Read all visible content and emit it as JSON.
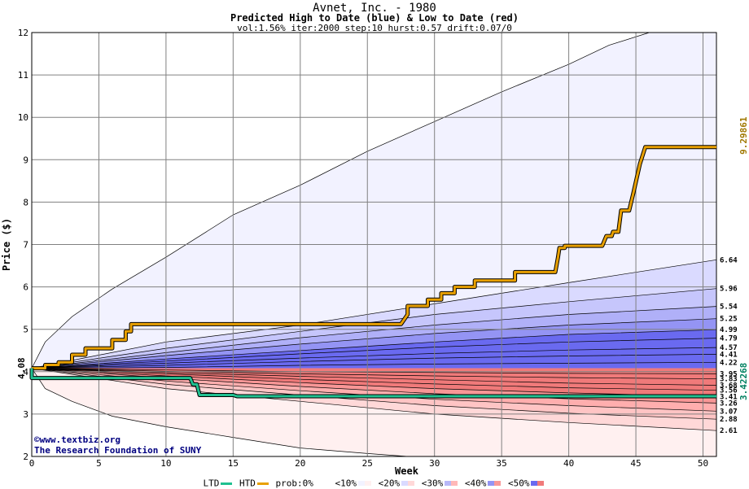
{
  "header": {
    "title": "Avnet, Inc. - 1980",
    "subtitle": "Predicted High to Date (blue) &  Low to Date (red)",
    "params": "vol:1.56% iter:2000 step:10 hurst:0.57 drift:0.07/0"
  },
  "credit": {
    "line1": "©www.textbiz.org",
    "line2": "The Research Foundation of SUNY"
  },
  "legend": {
    "ltd": "LTD",
    "htd": "HTD",
    "prob": "prob:0%",
    "b10": "<10%",
    "b20": "<20%",
    "b30": "<30%",
    "b40": "<40%",
    "b50": "<50%"
  },
  "colors": {
    "ltd": "#20c090",
    "htd": "#e8a000",
    "blue_band": "#6a6af0",
    "red_band": "#f07a7a",
    "grid": "#808080",
    "level_high": "#a07800",
    "level_low": "#008060"
  },
  "chart_data": {
    "type": "line",
    "title": "Avnet, Inc. - 1980",
    "xlabel": "Week",
    "ylabel": "Price ($)",
    "xlim": [
      0,
      51
    ],
    "ylim": [
      2,
      12
    ],
    "xticks": [
      0,
      5,
      10,
      15,
      20,
      25,
      30,
      35,
      40,
      45,
      50
    ],
    "yticks": [
      2,
      3,
      4,
      5,
      6,
      7,
      8,
      9,
      10,
      11,
      12
    ],
    "grid": true,
    "start_price": 4.08,
    "start_label": "4.08",
    "htd_final": 9.29861,
    "htd_final_label": "9.29861",
    "ltd_final": 3.42268,
    "ltd_final_label": "3.42268",
    "right_labels": [
      "6.64",
      "5.96",
      "5.54",
      "5.25",
      "4.99",
      "4.79",
      "4.57",
      "4.41",
      "4.22",
      "3.95",
      "3.83",
      "3.68",
      "3.56",
      "3.41",
      "3.26",
      "3.07",
      "2.88",
      "2.61"
    ],
    "envelope_upper": [
      [
        0,
        4.08
      ],
      [
        1,
        4.7
      ],
      [
        3,
        5.3
      ],
      [
        6,
        5.95
      ],
      [
        10,
        6.7
      ],
      [
        13,
        7.3
      ],
      [
        15,
        7.7
      ],
      [
        20,
        8.4
      ],
      [
        25,
        9.2
      ],
      [
        30,
        9.9
      ],
      [
        35,
        10.6
      ],
      [
        40,
        11.25
      ],
      [
        43,
        11.7
      ],
      [
        46,
        12.0
      ],
      [
        51,
        12.0
      ]
    ],
    "envelope_lower": [
      [
        0,
        4.08
      ],
      [
        1,
        3.6
      ],
      [
        3,
        3.3
      ],
      [
        6,
        2.95
      ],
      [
        10,
        2.7
      ],
      [
        15,
        2.45
      ],
      [
        20,
        2.2
      ],
      [
        25,
        2.07
      ],
      [
        28,
        2.0
      ],
      [
        51,
        2.0
      ]
    ],
    "blue_bands": [
      {
        "band": "<10%",
        "points": [
          [
            0,
            4.08
          ],
          [
            10,
            4.7
          ],
          [
            20,
            5.1
          ],
          [
            30,
            5.6
          ],
          [
            40,
            6.1
          ],
          [
            51,
            6.64
          ]
        ]
      },
      {
        "band": "<20%",
        "points": [
          [
            0,
            4.08
          ],
          [
            10,
            4.55
          ],
          [
            20,
            4.95
          ],
          [
            30,
            5.35
          ],
          [
            40,
            5.65
          ],
          [
            51,
            5.96
          ]
        ]
      },
      {
        "band": "<30%",
        "points": [
          [
            0,
            4.08
          ],
          [
            10,
            4.45
          ],
          [
            20,
            4.8
          ],
          [
            30,
            5.1
          ],
          [
            40,
            5.35
          ],
          [
            51,
            5.54
          ]
        ]
      },
      {
        "band": "<40%",
        "points": [
          [
            0,
            4.08
          ],
          [
            10,
            4.38
          ],
          [
            20,
            4.65
          ],
          [
            30,
            4.9
          ],
          [
            40,
            5.1
          ],
          [
            51,
            5.25
          ]
        ]
      },
      {
        "band": "<50%",
        "points": [
          [
            0,
            4.08
          ],
          [
            10,
            4.3
          ],
          [
            20,
            4.5
          ],
          [
            30,
            4.7
          ],
          [
            40,
            4.88
          ],
          [
            51,
            4.99
          ]
        ]
      }
    ],
    "blue_inner_lines": [
      [
        [
          0,
          4.08
        ],
        [
          10,
          4.25
        ],
        [
          20,
          4.42
        ],
        [
          30,
          4.58
        ],
        [
          40,
          4.7
        ],
        [
          51,
          4.79
        ]
      ],
      [
        [
          0,
          4.08
        ],
        [
          10,
          4.2
        ],
        [
          20,
          4.32
        ],
        [
          30,
          4.43
        ],
        [
          40,
          4.51
        ],
        [
          51,
          4.57
        ]
      ],
      [
        [
          0,
          4.08
        ],
        [
          10,
          4.15
        ],
        [
          20,
          4.24
        ],
        [
          30,
          4.32
        ],
        [
          40,
          4.37
        ],
        [
          51,
          4.41
        ]
      ],
      [
        [
          0,
          4.08
        ],
        [
          10,
          4.1
        ],
        [
          20,
          4.15
        ],
        [
          30,
          4.18
        ],
        [
          40,
          4.2
        ],
        [
          51,
          4.22
        ]
      ]
    ],
    "red_bands": [
      {
        "band": "<10%",
        "points": [
          [
            0,
            4.08
          ],
          [
            10,
            3.6
          ],
          [
            20,
            3.3
          ],
          [
            30,
            3.0
          ],
          [
            40,
            2.8
          ],
          [
            51,
            2.61
          ]
        ]
      },
      {
        "band": "<20%",
        "points": [
          [
            0,
            4.08
          ],
          [
            10,
            3.7
          ],
          [
            20,
            3.45
          ],
          [
            30,
            3.2
          ],
          [
            40,
            3.02
          ],
          [
            51,
            2.88
          ]
        ]
      },
      {
        "band": "<30%",
        "points": [
          [
            0,
            4.08
          ],
          [
            10,
            3.78
          ],
          [
            20,
            3.55
          ],
          [
            30,
            3.35
          ],
          [
            40,
            3.2
          ],
          [
            51,
            3.07
          ]
        ]
      },
      {
        "band": "<40%",
        "points": [
          [
            0,
            4.08
          ],
          [
            10,
            3.85
          ],
          [
            20,
            3.65
          ],
          [
            30,
            3.48
          ],
          [
            40,
            3.36
          ],
          [
            51,
            3.26
          ]
        ]
      },
      {
        "band": "<50%",
        "points": [
          [
            0,
            4.08
          ],
          [
            10,
            3.9
          ],
          [
            20,
            3.74
          ],
          [
            30,
            3.6
          ],
          [
            40,
            3.5
          ],
          [
            51,
            3.41
          ]
        ]
      }
    ],
    "red_inner_lines": [
      [
        [
          0,
          4.08
        ],
        [
          10,
          3.95
        ],
        [
          20,
          3.82
        ],
        [
          30,
          3.71
        ],
        [
          40,
          3.62
        ],
        [
          51,
          3.56
        ]
      ],
      [
        [
          0,
          4.08
        ],
        [
          10,
          3.98
        ],
        [
          20,
          3.89
        ],
        [
          30,
          3.81
        ],
        [
          40,
          3.73
        ],
        [
          51,
          3.68
        ]
      ],
      [
        [
          0,
          4.08
        ],
        [
          10,
          4.01
        ],
        [
          20,
          3.95
        ],
        [
          30,
          3.9
        ],
        [
          40,
          3.86
        ],
        [
          51,
          3.83
        ]
      ],
      [
        [
          0,
          4.08
        ],
        [
          10,
          4.04
        ],
        [
          20,
          4.0
        ],
        [
          30,
          3.98
        ],
        [
          40,
          3.96
        ],
        [
          51,
          3.95
        ]
      ]
    ],
    "series": [
      {
        "name": "HTD",
        "points": [
          [
            0,
            4.08
          ],
          [
            1,
            4.08
          ],
          [
            1,
            4.16
          ],
          [
            2,
            4.16
          ],
          [
            2,
            4.22
          ],
          [
            3,
            4.22
          ],
          [
            3,
            4.4
          ],
          [
            4,
            4.4
          ],
          [
            4,
            4.55
          ],
          [
            6,
            4.55
          ],
          [
            6,
            4.75
          ],
          [
            7,
            4.75
          ],
          [
            7,
            4.95
          ],
          [
            7.4,
            4.95
          ],
          [
            7.4,
            5.12
          ],
          [
            27.5,
            5.12
          ],
          [
            28,
            5.35
          ],
          [
            28,
            5.55
          ],
          [
            29.5,
            5.55
          ],
          [
            29.5,
            5.7
          ],
          [
            30.5,
            5.7
          ],
          [
            30.5,
            5.85
          ],
          [
            31.5,
            5.85
          ],
          [
            31.5,
            6.0
          ],
          [
            33,
            6.0
          ],
          [
            33,
            6.15
          ],
          [
            36,
            6.15
          ],
          [
            36,
            6.35
          ],
          [
            39,
            6.35
          ],
          [
            39.2,
            6.7
          ],
          [
            39.3,
            6.92
          ],
          [
            39.7,
            6.92
          ],
          [
            39.7,
            6.97
          ],
          [
            42.5,
            6.97
          ],
          [
            42.8,
            7.2
          ],
          [
            43.2,
            7.2
          ],
          [
            43.3,
            7.3
          ],
          [
            43.7,
            7.3
          ],
          [
            43.9,
            7.8
          ],
          [
            44.5,
            7.8
          ],
          [
            44.8,
            8.2
          ],
          [
            45.3,
            8.9
          ],
          [
            45.7,
            9.3
          ],
          [
            51,
            9.3
          ]
        ]
      },
      {
        "name": "LTD",
        "points": [
          [
            0,
            4.08
          ],
          [
            0,
            3.85
          ],
          [
            11.8,
            3.85
          ],
          [
            12,
            3.7
          ],
          [
            12.3,
            3.7
          ],
          [
            12.5,
            3.45
          ],
          [
            15,
            3.45
          ],
          [
            15.3,
            3.42
          ],
          [
            51,
            3.42
          ]
        ]
      }
    ]
  }
}
